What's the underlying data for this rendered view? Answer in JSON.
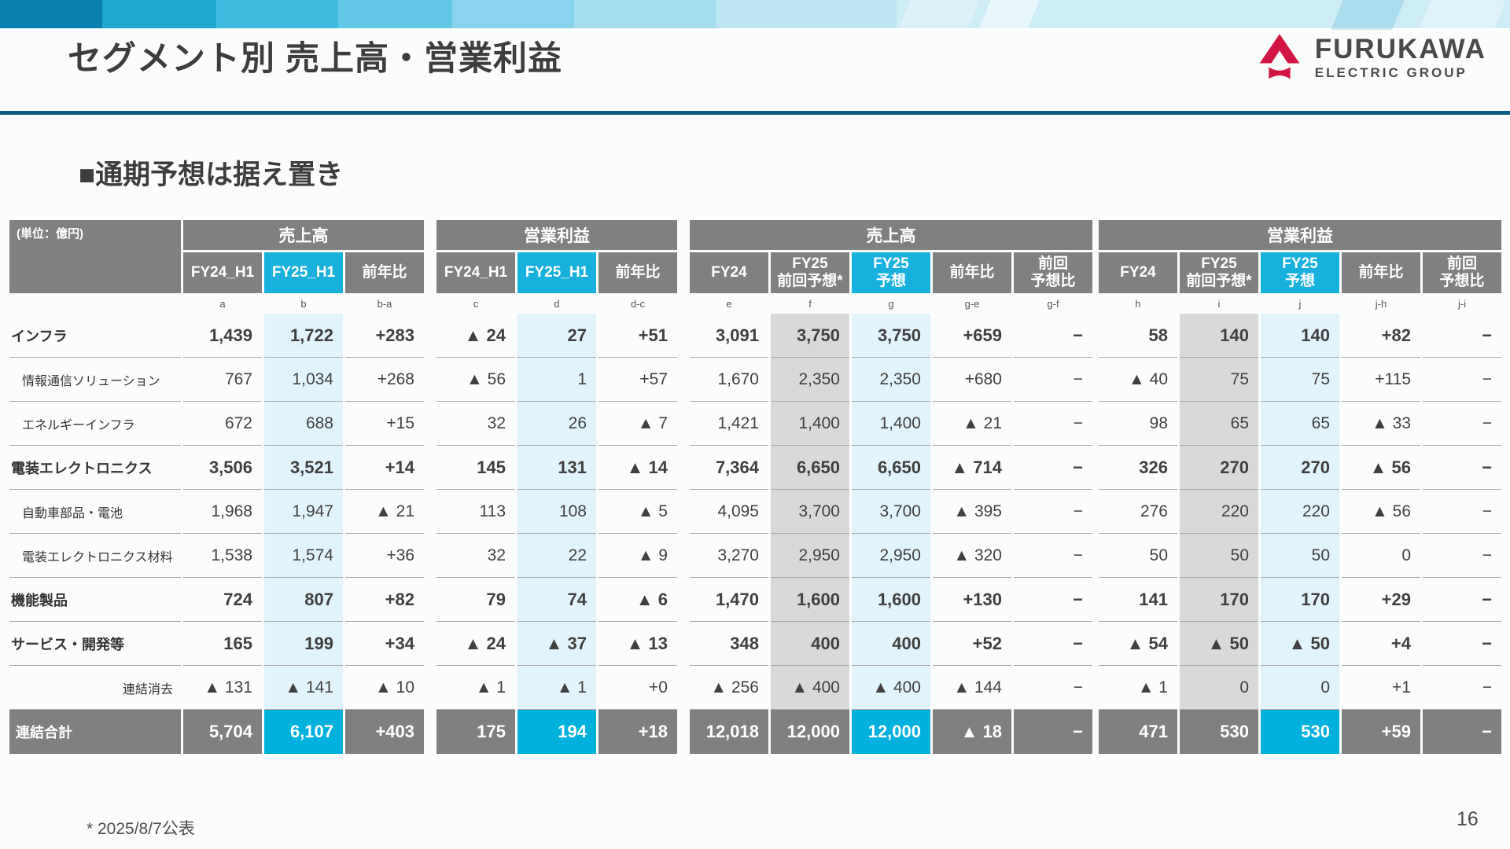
{
  "slide": {
    "title": "セグメント別 売上高・営業利益",
    "subtitle": "■通期予想は据え置き",
    "unit_label": "(単位：億円)",
    "footnote": "* 2025/8/7公表",
    "page_number": "16"
  },
  "logo": {
    "line1": "FURUKAWA",
    "line2": "ELECTRIC GROUP",
    "mark": "red-triangle-mark"
  },
  "colors": {
    "brand_red": "#d21643",
    "accent_cyan": "#18b0dc",
    "header_gray": "#808080",
    "highlight_blue": "#e2f4fb",
    "highlight_gray": "#d9d9d9",
    "total_cyan": "#00b1dd",
    "underline_blue": "#0d5c84",
    "text_dark": "#404040"
  },
  "tables": {
    "h1": {
      "groups": [
        "売上高",
        "営業利益"
      ],
      "columns": [
        "FY24_H1",
        "FY25_H1",
        "前年比",
        "FY24_H1",
        "FY25_H1",
        "前年比"
      ],
      "letters": [
        "a",
        "b",
        "b-a",
        "c",
        "d",
        "d-c"
      ]
    },
    "full": {
      "groups": [
        "売上高",
        "営業利益"
      ],
      "columns": [
        "FY24",
        "FY25\n前回予想*",
        "FY25\n予想",
        "前年比",
        "前回\n予想比"
      ],
      "letters_sales": [
        "e",
        "f",
        "g",
        "g-e",
        "g-f"
      ],
      "letters_profit": [
        "h",
        "i",
        "j",
        "j-h",
        "j-i"
      ]
    },
    "rows": [
      {
        "label": "インフラ",
        "level": "segment",
        "h1": [
          "1,439",
          "1,722",
          "+283",
          "▲ 24",
          "27",
          "+51"
        ],
        "full_sales": [
          "3,091",
          "3,750",
          "3,750",
          "+659",
          "−"
        ],
        "full_profit": [
          "58",
          "140",
          "140",
          "+82",
          "−"
        ]
      },
      {
        "label": "情報通信ソリューション",
        "level": "sub",
        "h1": [
          "767",
          "1,034",
          "+268",
          "▲ 56",
          "1",
          "+57"
        ],
        "full_sales": [
          "1,670",
          "2,350",
          "2,350",
          "+680",
          "−"
        ],
        "full_profit": [
          "▲ 40",
          "75",
          "75",
          "+115",
          "−"
        ]
      },
      {
        "label": "エネルギーインフラ",
        "level": "sub",
        "h1": [
          "672",
          "688",
          "+15",
          "32",
          "26",
          "▲ 7"
        ],
        "full_sales": [
          "1,421",
          "1,400",
          "1,400",
          "▲ 21",
          "−"
        ],
        "full_profit": [
          "98",
          "65",
          "65",
          "▲ 33",
          "−"
        ]
      },
      {
        "label": "電装エレクトロニクス",
        "level": "segment",
        "h1": [
          "3,506",
          "3,521",
          "+14",
          "145",
          "131",
          "▲ 14"
        ],
        "full_sales": [
          "7,364",
          "6,650",
          "6,650",
          "▲ 714",
          "−"
        ],
        "full_profit": [
          "326",
          "270",
          "270",
          "▲ 56",
          "−"
        ]
      },
      {
        "label": "自動車部品・電池",
        "level": "sub",
        "h1": [
          "1,968",
          "1,947",
          "▲ 21",
          "113",
          "108",
          "▲ 5"
        ],
        "full_sales": [
          "4,095",
          "3,700",
          "3,700",
          "▲ 395",
          "−"
        ],
        "full_profit": [
          "276",
          "220",
          "220",
          "▲ 56",
          "−"
        ]
      },
      {
        "label": "電装エレクトロニクス材料",
        "level": "sub",
        "h1": [
          "1,538",
          "1,574",
          "+36",
          "32",
          "22",
          "▲ 9"
        ],
        "full_sales": [
          "3,270",
          "2,950",
          "2,950",
          "▲ 320",
          "−"
        ],
        "full_profit": [
          "50",
          "50",
          "50",
          "0",
          "−"
        ]
      },
      {
        "label": "機能製品",
        "level": "segment",
        "h1": [
          "724",
          "807",
          "+82",
          "79",
          "74",
          "▲ 6"
        ],
        "full_sales": [
          "1,470",
          "1,600",
          "1,600",
          "+130",
          "−"
        ],
        "full_profit": [
          "141",
          "170",
          "170",
          "+29",
          "−"
        ]
      },
      {
        "label": "サービス・開発等",
        "level": "segment",
        "h1": [
          "165",
          "199",
          "+34",
          "▲ 24",
          "▲ 37",
          "▲ 13"
        ],
        "full_sales": [
          "348",
          "400",
          "400",
          "+52",
          "−"
        ],
        "full_profit": [
          "▲ 54",
          "▲ 50",
          "▲ 50",
          "+4",
          "−"
        ]
      },
      {
        "label": "連結消去",
        "level": "elimination",
        "h1": [
          "▲ 131",
          "▲ 141",
          "▲ 10",
          "▲ 1",
          "▲ 1",
          "+0"
        ],
        "full_sales": [
          "▲ 256",
          "▲ 400",
          "▲ 400",
          "▲ 144",
          "−"
        ],
        "full_profit": [
          "▲ 1",
          "0",
          "0",
          "+1",
          "−"
        ]
      },
      {
        "label": "連結合計",
        "level": "total",
        "h1": [
          "5,704",
          "6,107",
          "+403",
          "175",
          "194",
          "+18"
        ],
        "full_sales": [
          "12,018",
          "12,000",
          "12,000",
          "▲ 18",
          "−"
        ],
        "full_profit": [
          "471",
          "530",
          "530",
          "+59",
          "−"
        ]
      }
    ]
  }
}
